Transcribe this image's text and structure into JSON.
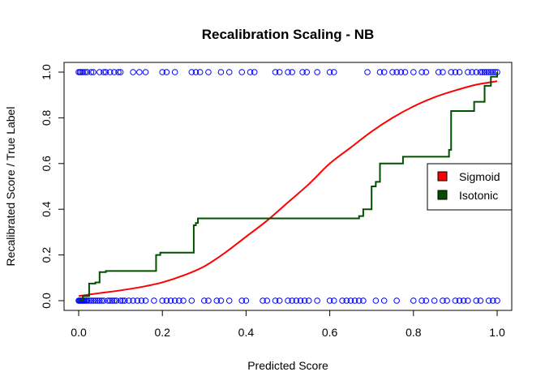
{
  "chart_data": {
    "type": "scatter",
    "title": "Recalibration Scaling - NB",
    "xlabel": "Predicted Score",
    "ylabel": "Recalibrated Score / True Label",
    "xlim": [
      0,
      1
    ],
    "ylim": [
      0,
      1
    ],
    "x_ticks": [
      "0.0",
      "0.2",
      "0.4",
      "0.6",
      "0.8",
      "1.0"
    ],
    "y_ticks": [
      "0.0",
      "0.2",
      "0.4",
      "0.6",
      "0.8",
      "1.0"
    ],
    "grid": false,
    "legend_position": "right",
    "legend": [
      {
        "label": "Sigmoid",
        "color": "#ff0000"
      },
      {
        "label": "Isotonic",
        "color": "#005000"
      }
    ],
    "points_color": "#0000ff",
    "points_label_1_x": [
      0.0,
      0.003,
      0.006,
      0.01,
      0.015,
      0.02,
      0.03,
      0.035,
      0.05,
      0.06,
      0.065,
      0.075,
      0.085,
      0.095,
      0.1,
      0.13,
      0.145,
      0.16,
      0.2,
      0.21,
      0.23,
      0.27,
      0.28,
      0.29,
      0.31,
      0.34,
      0.36,
      0.39,
      0.41,
      0.42,
      0.47,
      0.48,
      0.5,
      0.51,
      0.535,
      0.545,
      0.57,
      0.6,
      0.61,
      0.69,
      0.72,
      0.73,
      0.75,
      0.76,
      0.77,
      0.78,
      0.8,
      0.82,
      0.83,
      0.86,
      0.87,
      0.89,
      0.9,
      0.91,
      0.93,
      0.94,
      0.95,
      0.96,
      0.965,
      0.97,
      0.975,
      0.98,
      0.985,
      0.99,
      0.995,
      1.0
    ],
    "points_label_0_x": [
      0.0,
      0.002,
      0.004,
      0.006,
      0.008,
      0.01,
      0.012,
      0.015,
      0.018,
      0.02,
      0.025,
      0.03,
      0.035,
      0.04,
      0.045,
      0.05,
      0.055,
      0.06,
      0.07,
      0.075,
      0.08,
      0.085,
      0.09,
      0.1,
      0.105,
      0.11,
      0.12,
      0.13,
      0.14,
      0.15,
      0.16,
      0.18,
      0.2,
      0.21,
      0.22,
      0.23,
      0.24,
      0.25,
      0.27,
      0.3,
      0.31,
      0.33,
      0.34,
      0.36,
      0.39,
      0.4,
      0.44,
      0.45,
      0.47,
      0.48,
      0.5,
      0.51,
      0.52,
      0.53,
      0.54,
      0.55,
      0.57,
      0.6,
      0.61,
      0.63,
      0.64,
      0.65,
      0.66,
      0.67,
      0.68,
      0.71,
      0.73,
      0.76,
      0.8,
      0.82,
      0.83,
      0.85,
      0.87,
      0.88,
      0.9,
      0.91,
      0.92,
      0.93,
      0.95,
      0.96,
      0.98,
      0.99,
      1.0
    ],
    "series": [
      {
        "name": "Sigmoid",
        "type": "line",
        "color": "#ff0000",
        "x": [
          0.0,
          0.05,
          0.1,
          0.15,
          0.2,
          0.25,
          0.3,
          0.35,
          0.4,
          0.45,
          0.5,
          0.55,
          0.6,
          0.65,
          0.7,
          0.75,
          0.8,
          0.85,
          0.9,
          0.95,
          1.0
        ],
        "y": [
          0.02,
          0.033,
          0.045,
          0.06,
          0.08,
          0.11,
          0.15,
          0.21,
          0.28,
          0.35,
          0.43,
          0.51,
          0.6,
          0.67,
          0.74,
          0.8,
          0.85,
          0.89,
          0.92,
          0.945,
          0.96
        ]
      },
      {
        "name": "Isotonic",
        "type": "step",
        "color": "#005000",
        "x": [
          0.0,
          0.01,
          0.025,
          0.04,
          0.05,
          0.065,
          0.185,
          0.195,
          0.275,
          0.28,
          0.285,
          0.67,
          0.68,
          0.7,
          0.71,
          0.72,
          0.775,
          0.885,
          0.89,
          0.945,
          0.97,
          0.985,
          1.0
        ],
        "y": [
          0.0,
          0.02,
          0.075,
          0.08,
          0.125,
          0.13,
          0.2,
          0.21,
          0.33,
          0.34,
          0.36,
          0.37,
          0.4,
          0.5,
          0.52,
          0.6,
          0.63,
          0.66,
          0.83,
          0.87,
          0.94,
          0.98,
          1.0
        ]
      }
    ]
  }
}
